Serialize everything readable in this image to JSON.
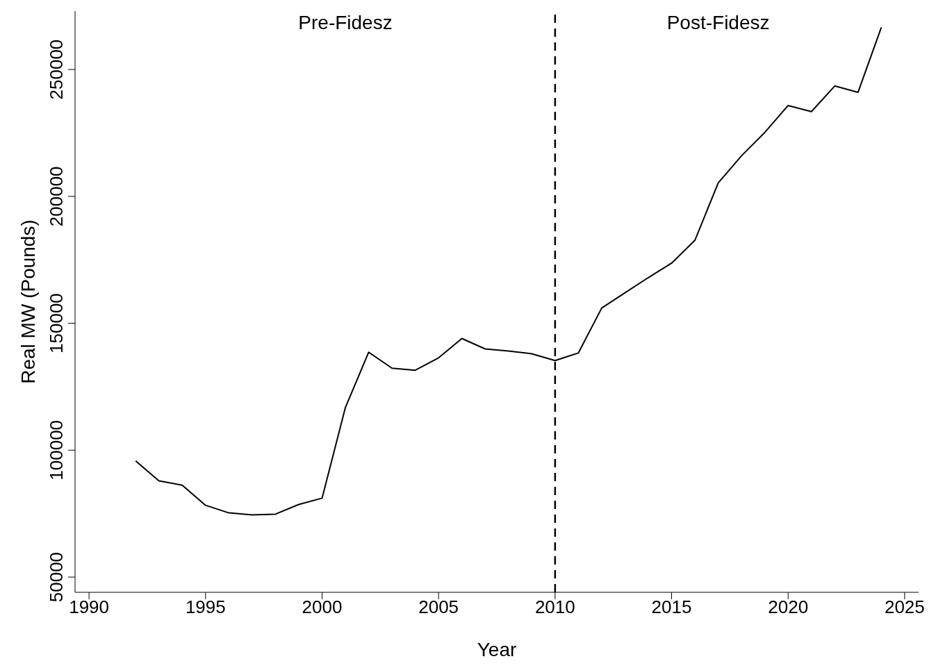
{
  "chart_data": {
    "type": "line",
    "xlabel": "Year",
    "ylabel": "Real MW (Pounds)",
    "x": [
      1992,
      1993,
      1994,
      1995,
      1996,
      1997,
      1998,
      1999,
      2000,
      2001,
      2002,
      2003,
      2004,
      2005,
      2006,
      2007,
      2008,
      2009,
      2010,
      2011,
      2012,
      2013,
      2014,
      2015,
      2016,
      2017,
      2018,
      2019,
      2020,
      2021,
      2022,
      2023,
      2024
    ],
    "series": [
      {
        "color": "#000000",
        "values": [
          95800,
          87900,
          86200,
          78300,
          75300,
          74500,
          74800,
          78600,
          81100,
          116800,
          138600,
          132300,
          131500,
          136400,
          144000,
          139900,
          139100,
          138000,
          135300,
          138300,
          156000,
          162000,
          168000,
          173700,
          182700,
          205300,
          216000,
          225200,
          235800,
          233400,
          243500,
          241000,
          266600
        ]
      }
    ],
    "xlim": [
      1989.4,
      2025.6
    ],
    "xticks": [
      1990,
      1995,
      2000,
      2005,
      2010,
      2015,
      2020,
      2025
    ],
    "ylim": [
      44000,
      273000
    ],
    "yticks": [
      50000,
      100000,
      150000,
      200000,
      250000
    ],
    "ref_lines": [
      {
        "axis": "x",
        "value": 2010,
        "color": "#000000",
        "line_style": "dashed"
      }
    ],
    "annotations": [
      "Pre-Fidesz",
      "Post-Fidesz"
    ],
    "grid": false,
    "legend": false,
    "marker": "none",
    "line_style": "solid"
  }
}
